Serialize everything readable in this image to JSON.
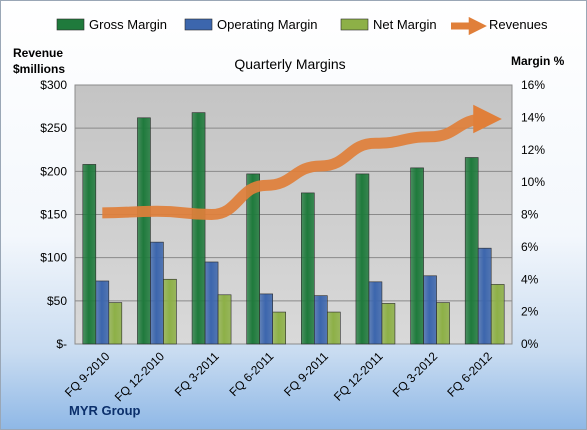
{
  "chart_data": {
    "type": "bar",
    "title": "Quarterly Margins",
    "categories": [
      "FQ 9-2010",
      "FQ 12-2010",
      "FQ 3-2011",
      "FQ 6-2011",
      "FQ 9-2011",
      "FQ 12-2011",
      "FQ 3-2012",
      "FQ 6-2012"
    ],
    "series": [
      {
        "name": "Gross Margin",
        "type": "bar",
        "axis": "left",
        "color": "#1f7a3c",
        "values": [
          208,
          262,
          268,
          197,
          175,
          197,
          204,
          216
        ]
      },
      {
        "name": "Operating Margin",
        "type": "bar",
        "axis": "left",
        "color": "#3c66ad",
        "values": [
          73,
          118,
          95,
          58,
          56,
          72,
          79,
          111
        ]
      },
      {
        "name": "Net Margin",
        "type": "bar",
        "axis": "left",
        "color": "#8db047",
        "values": [
          48,
          75,
          57,
          37,
          37,
          47,
          48,
          69
        ]
      },
      {
        "name": "Revenues",
        "type": "line",
        "axis": "right",
        "color": "#e07f3a",
        "values": [
          8.1,
          8.2,
          8.0,
          9.8,
          11.0,
          12.4,
          12.8,
          13.9
        ]
      }
    ],
    "ylabel_left_line1": "Revenue",
    "ylabel_left_line2": "$millions",
    "ylabel_right": "Margin %",
    "ylim_left": [
      0,
      300
    ],
    "ylim_right": [
      0,
      16
    ],
    "yticks_left": [
      "$-",
      "$50",
      "$100",
      "$150",
      "$200",
      "$250",
      "$300"
    ],
    "yticks_right": [
      "0%",
      "2%",
      "4%",
      "6%",
      "8%",
      "10%",
      "12%",
      "14%",
      "16%"
    ],
    "grid": true,
    "legend_position": "top",
    "source_label": "MYR Group"
  }
}
